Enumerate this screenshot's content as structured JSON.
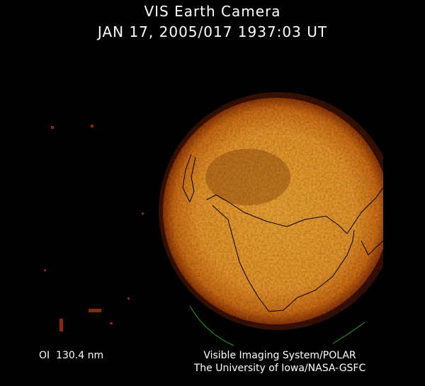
{
  "header": {
    "title": "VIS Earth Camera",
    "timestamp": "JAN 17, 2005/017 1937:03 UT"
  },
  "footer": {
    "filter": "OI  130.4 nm",
    "credit_line1": "Visible Imaging System/POLAR",
    "credit_line2": "The University of Iowa/NASA-GSFC"
  },
  "image": {
    "colors": {
      "background": "#000000",
      "disk_core": "#e8a030",
      "disk_edge": "#a04008",
      "coastline": "#000000",
      "limb_marker": "#2a9a2a"
    }
  }
}
